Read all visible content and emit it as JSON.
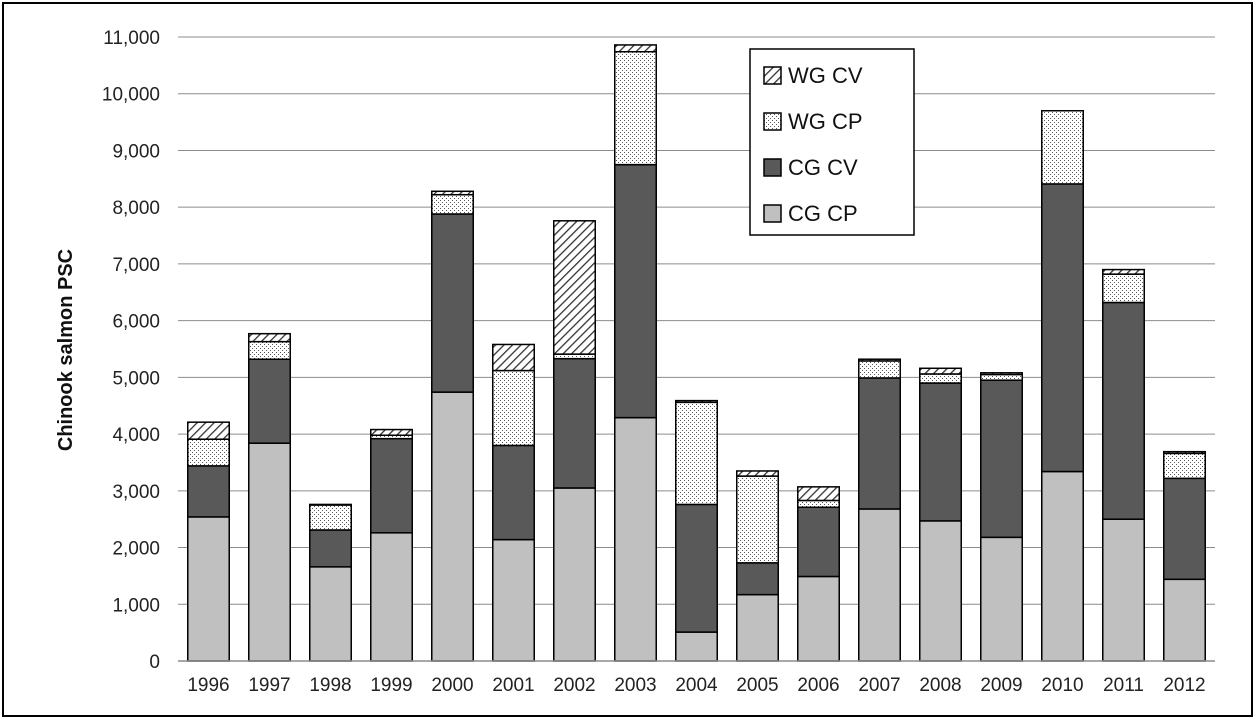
{
  "chart_data": {
    "type": "bar",
    "stacked": true,
    "title": "",
    "xlabel": "",
    "ylabel": "Chinook salmon PSC",
    "ylim": [
      0,
      11000
    ],
    "ytick_step": 1000,
    "yticks": [
      "0",
      "1,000",
      "2,000",
      "3,000",
      "4,000",
      "5,000",
      "6,000",
      "7,000",
      "8,000",
      "9,000",
      "10,000",
      "11,000"
    ],
    "grid": true,
    "legend_position": "top-center-right",
    "categories": [
      "1996",
      "1997",
      "1998",
      "1999",
      "2000",
      "2001",
      "2002",
      "2003",
      "2004",
      "2005",
      "2006",
      "2007",
      "2008",
      "2009",
      "2010",
      "2011",
      "2012"
    ],
    "series": [
      {
        "name": "CG CP",
        "fill": "solid",
        "color": "#c0c0c0",
        "values": [
          2540,
          3840,
          1660,
          2260,
          4740,
          2140,
          3050,
          4290,
          510,
          1170,
          1490,
          2680,
          2470,
          2180,
          3340,
          2500,
          1440
        ]
      },
      {
        "name": "CG CV",
        "fill": "solid",
        "color": "#595959",
        "values": [
          900,
          1480,
          650,
          1660,
          3140,
          1660,
          2280,
          4460,
          2250,
          560,
          1220,
          2310,
          2430,
          2770,
          5070,
          3820,
          1780
        ]
      },
      {
        "name": "WG CP",
        "fill": "dots",
        "color": "#ffffff",
        "values": [
          470,
          310,
          440,
          60,
          340,
          1320,
          80,
          1990,
          1800,
          1530,
          120,
          300,
          160,
          100,
          1290,
          500,
          440
        ]
      },
      {
        "name": "WG CV",
        "fill": "hatch",
        "color": "#ffffff",
        "values": [
          300,
          140,
          10,
          100,
          60,
          460,
          2350,
          120,
          30,
          90,
          240,
          30,
          100,
          30,
          0,
          80,
          30
        ]
      }
    ],
    "legend_order": [
      "WG CV",
      "WG CP",
      "CG CV",
      "CG CP"
    ]
  }
}
